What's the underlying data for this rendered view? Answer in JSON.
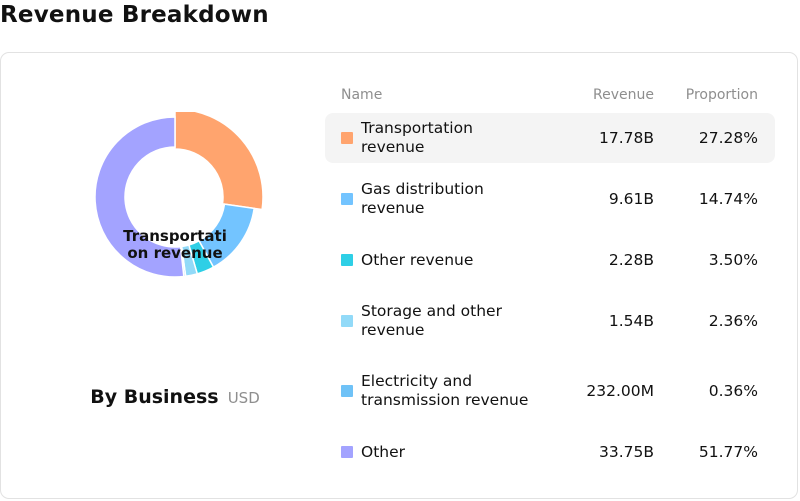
{
  "title": "Revenue Breakdown",
  "caption": {
    "main": "By Business",
    "unit": "USD"
  },
  "center_label": "Transportation revenue",
  "table": {
    "headers": {
      "name": "Name",
      "revenue": "Revenue",
      "proportion": "Proportion"
    },
    "rows": [
      {
        "name": "Transportation revenue",
        "revenue": "17.78B",
        "proportion": "27.28%",
        "color": "#ffa46e"
      },
      {
        "name": "Gas distribution revenue",
        "revenue": "9.61B",
        "proportion": "14.74%",
        "color": "#73c4ff"
      },
      {
        "name": "Other revenue",
        "revenue": "2.28B",
        "proportion": "3.50%",
        "color": "#2ecfe6"
      },
      {
        "name": "Storage and other revenue",
        "revenue": "1.54B",
        "proportion": "2.36%",
        "color": "#92daf8"
      },
      {
        "name": "Electricity and transmission revenue",
        "revenue": "232.00M",
        "proportion": "0.36%",
        "color": "#6fc2f7"
      },
      {
        "name": "Other",
        "revenue": "33.75B",
        "proportion": "51.77%",
        "color": "#a3a3ff"
      }
    ]
  },
  "chart_data": {
    "type": "pie",
    "title": "",
    "categories": [
      "Transportation revenue",
      "Gas distribution revenue",
      "Other revenue",
      "Storage and other revenue",
      "Electricity and transmission revenue",
      "Other"
    ],
    "values": [
      27.28,
      14.74,
      3.5,
      2.36,
      0.36,
      51.77
    ],
    "unit": "%",
    "highlighted": "Transportation revenue"
  }
}
